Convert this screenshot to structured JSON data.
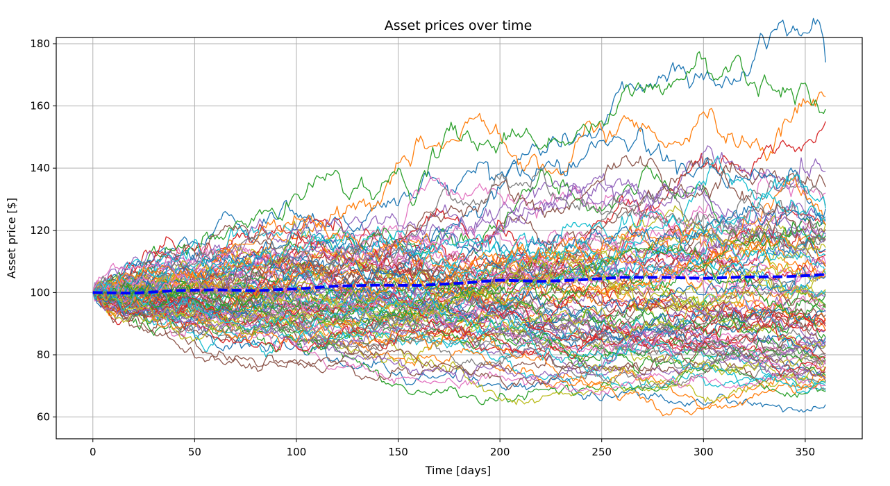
{
  "chart_data": {
    "type": "line",
    "title": "Asset prices over time",
    "xlabel": "Time [days]",
    "ylabel": "Asset price [$]",
    "xlim": [
      -18,
      378
    ],
    "ylim": [
      53,
      182
    ],
    "xticks": [
      0,
      50,
      100,
      150,
      200,
      250,
      300,
      350
    ],
    "yticks": [
      60,
      80,
      100,
      120,
      140,
      160,
      180
    ],
    "grid": true,
    "legend": "none",
    "simulation": {
      "num_paths": 100,
      "num_days": 360,
      "start_price": 100,
      "path_colors": [
        "#1f77b4",
        "#ff7f0e",
        "#2ca02c",
        "#d62728",
        "#9467bd",
        "#8c564b",
        "#e377c2",
        "#7f7f7f",
        "#bcbd22",
        "#17becf"
      ],
      "final_prices_sample": [
        174,
        163,
        159,
        155,
        139,
        134,
        132,
        128,
        122,
        112,
        106,
        100,
        95,
        90,
        88,
        84,
        80,
        78,
        71,
        70,
        64
      ]
    },
    "series": [
      {
        "style": "dashed",
        "color": "#0000ff",
        "x": [
          0,
          20,
          40,
          60,
          80,
          100,
          120,
          140,
          160,
          180,
          200,
          220,
          240,
          260,
          280,
          300,
          320,
          340,
          360
        ],
        "y": [
          100.0,
          99.8,
          100.6,
          100.9,
          100.6,
          101.2,
          102.1,
          102.4,
          102.3,
          103.0,
          104.0,
          103.6,
          104.1,
          104.9,
          104.9,
          104.6,
          105.0,
          105.1,
          105.8
        ]
      }
    ]
  }
}
